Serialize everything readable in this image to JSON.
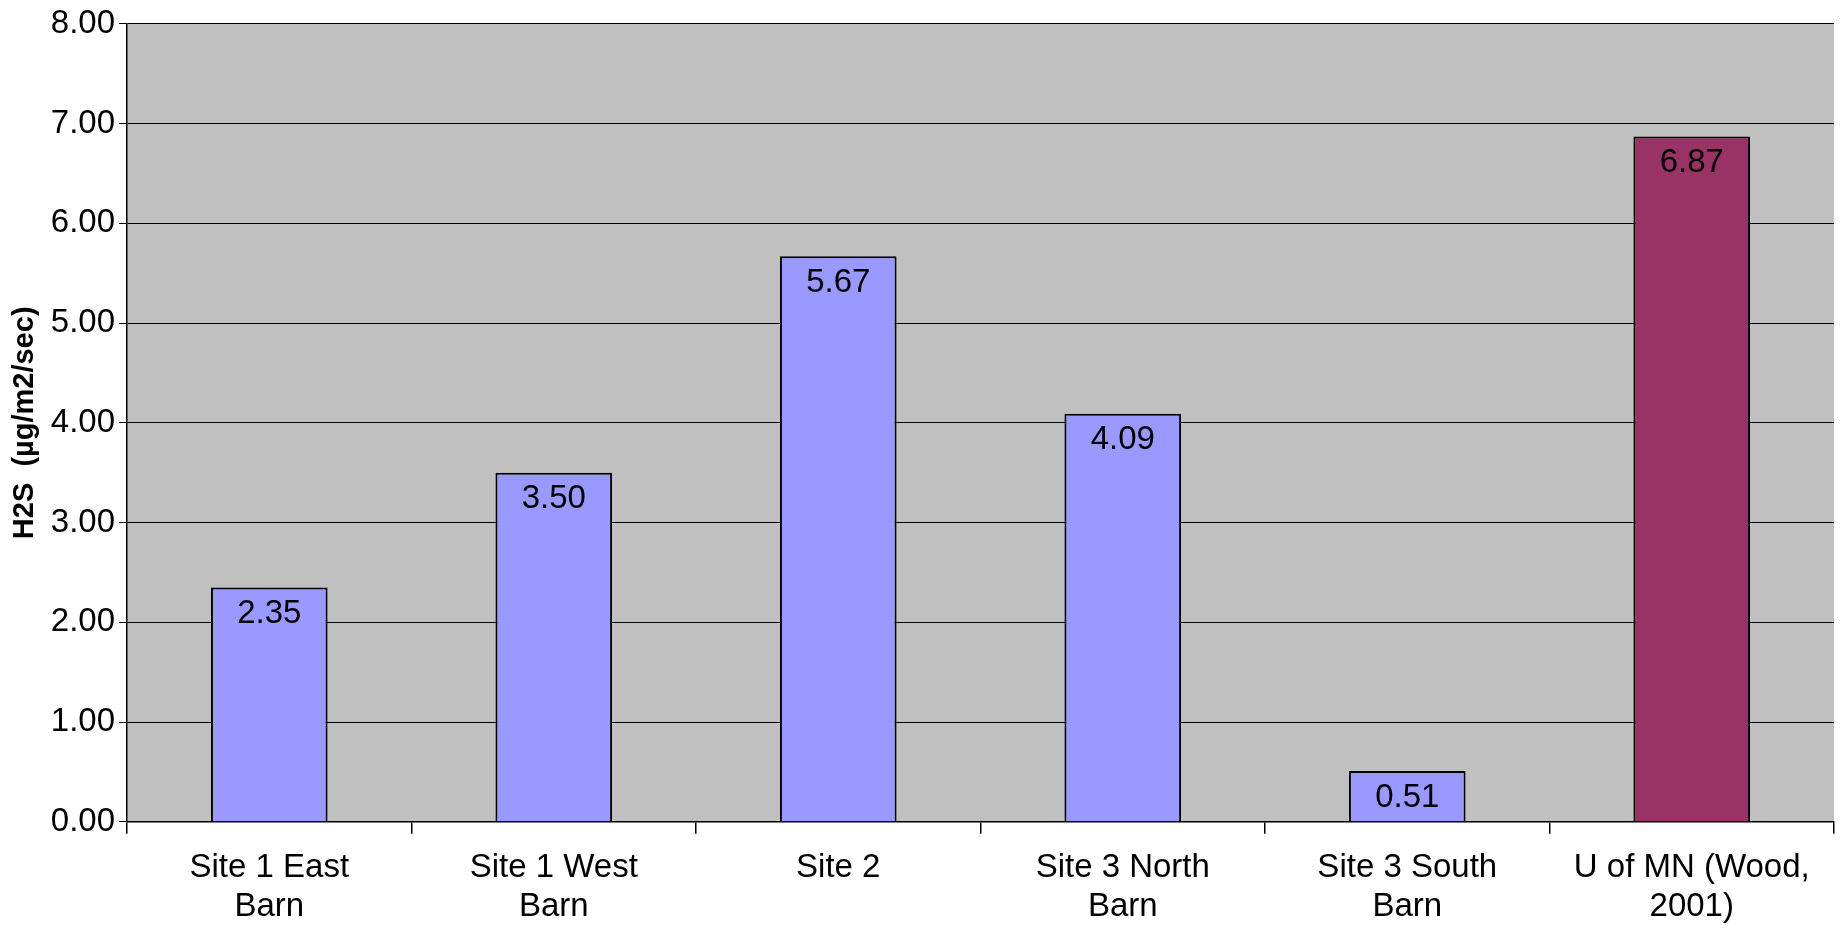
{
  "chart_data": {
    "type": "bar",
    "ylabel": "H2S  (µg/m2/sec)",
    "categories": [
      "Site 1 East\nBarn",
      "Site 1 West\nBarn",
      "Site 2",
      "Site 3 North\nBarn",
      "Site 3 South\nBarn",
      "U of MN (Wood,\n2001)"
    ],
    "values": [
      2.35,
      3.5,
      5.67,
      4.09,
      0.51,
      6.87
    ],
    "value_labels": [
      "2.35",
      "3.50",
      "5.67",
      "4.09",
      "0.51",
      "6.87"
    ],
    "colors": [
      "#9999ff",
      "#9999ff",
      "#9999ff",
      "#9999ff",
      "#9999ff",
      "#993366"
    ],
    "ylim": [
      0,
      8
    ],
    "yticks": [
      {
        "value": 0,
        "label": "0.00"
      },
      {
        "value": 1,
        "label": "1.00"
      },
      {
        "value": 2,
        "label": "2.00"
      },
      {
        "value": 3,
        "label": "3.00"
      },
      {
        "value": 4,
        "label": "4.00"
      },
      {
        "value": 5,
        "label": "5.00"
      },
      {
        "value": 6,
        "label": "6.00"
      },
      {
        "value": 7,
        "label": "7.00"
      },
      {
        "value": 8,
        "label": "8.00"
      }
    ],
    "grid": "y",
    "legend": false
  }
}
